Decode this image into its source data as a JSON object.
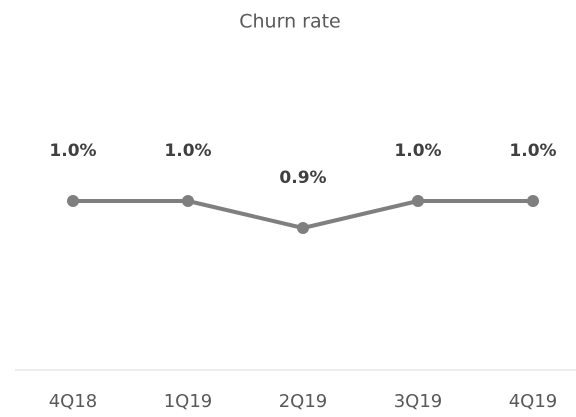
{
  "chart_data": {
    "type": "line",
    "title": "Churn rate",
    "categories": [
      "4Q18",
      "1Q19",
      "2Q19",
      "3Q19",
      "4Q19"
    ],
    "series": [
      {
        "name": "Churn rate",
        "color": "#7f7f7f",
        "values": [
          1.0,
          1.0,
          0.9,
          1.0,
          1.0
        ],
        "value_labels": [
          "1.0%",
          "1.0%",
          "0.9%",
          "1.0%",
          "1.0%"
        ]
      }
    ],
    "ylim": [
      0.5,
      1.5
    ]
  }
}
